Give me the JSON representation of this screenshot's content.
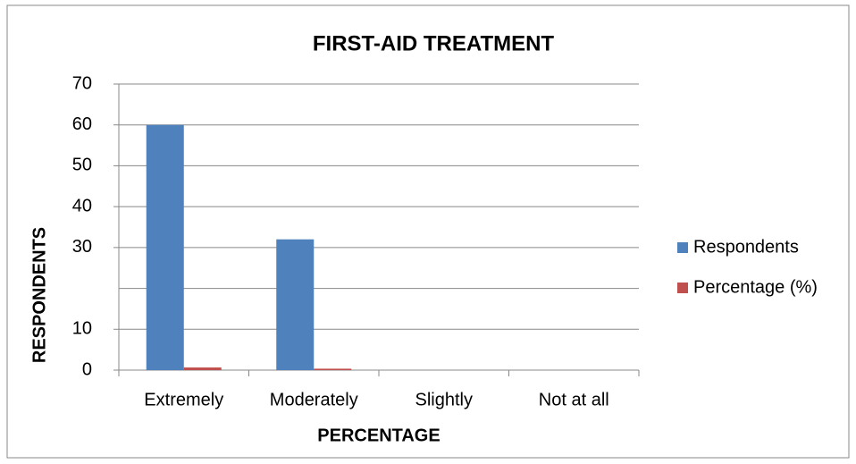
{
  "chart_data": {
    "type": "bar",
    "title": "FIRST-AID TREATMENT",
    "x_label": "PERCENTAGE",
    "y_label": "RESPONDENTS",
    "categories": [
      "Extremely",
      "Moderately",
      "Slightly",
      "Not at all"
    ],
    "series": [
      {
        "name": "Respondents",
        "color": "#4f81bd",
        "values": [
          60,
          32,
          0,
          0
        ]
      },
      {
        "name": "Percentage (%)",
        "color": "#c0504d",
        "values": [
          0.65,
          0.35,
          0,
          0
        ]
      }
    ],
    "ylim": [
      0,
      70
    ],
    "yticks": [
      0,
      10,
      30,
      40,
      50,
      60,
      70
    ],
    "ygrid": [
      0,
      10,
      20,
      30,
      40,
      50,
      60,
      70
    ],
    "grid": true,
    "legend": "right"
  }
}
